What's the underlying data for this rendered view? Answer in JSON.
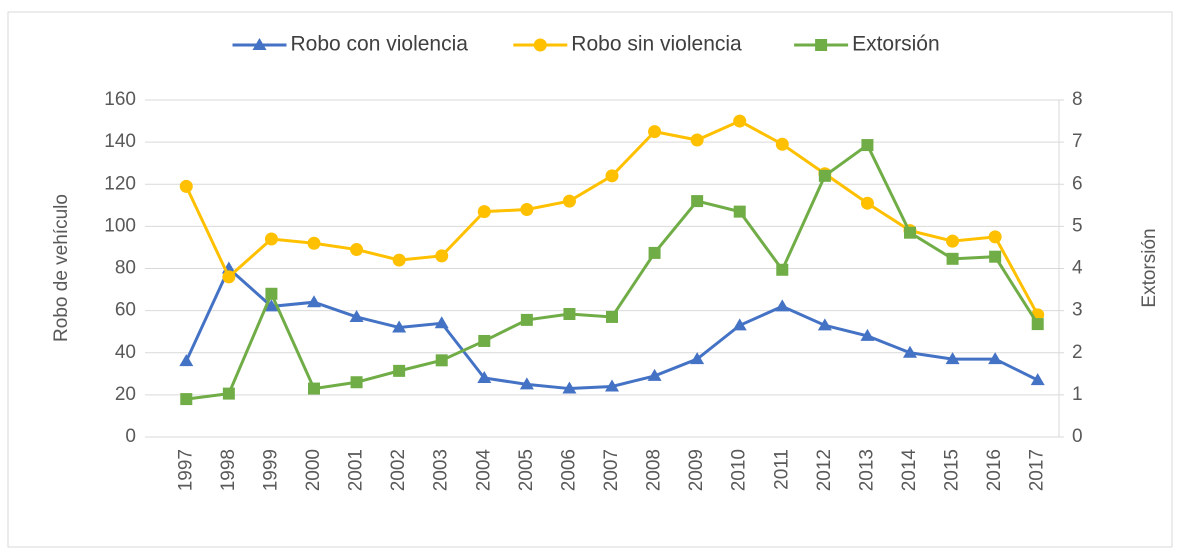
{
  "chart_data": {
    "type": "line",
    "categories": [
      "1997",
      "1998",
      "1999",
      "2000",
      "2001",
      "2002",
      "2003",
      "2004",
      "2005",
      "2006",
      "2007",
      "2008",
      "2009",
      "2010",
      "2011",
      "2012",
      "2013",
      "2014",
      "2015",
      "2016",
      "2017"
    ],
    "y_label": "Robo de vehículo",
    "y2_label": "Extorsión",
    "ylim": [
      0,
      160
    ],
    "yticks": [
      0,
      20,
      40,
      60,
      80,
      100,
      120,
      140,
      160
    ],
    "y2lim": [
      0,
      8
    ],
    "y2ticks": [
      0,
      1,
      2,
      3,
      4,
      5,
      6,
      7,
      8
    ],
    "grid": true,
    "legend": "top",
    "series": [
      {
        "name": "Robo con violencia",
        "color": "#4472c4",
        "marker": "triangle",
        "values": [
          36,
          80,
          62,
          64,
          57,
          52,
          54,
          28,
          25,
          23,
          24,
          29,
          37,
          53,
          62,
          53,
          48,
          40,
          37,
          37,
          27
        ]
      },
      {
        "name": "Robo sin violencia",
        "color": "#ffc000",
        "marker": "circle",
        "values": [
          119,
          76,
          94,
          92,
          89,
          84,
          86,
          107,
          108,
          112,
          124,
          145,
          141,
          150,
          139,
          125,
          111,
          98,
          93,
          95,
          58
        ]
      },
      {
        "name": "Extorsión",
        "color": "#70ad47",
        "marker": "square",
        "axis": "y2",
        "values": [
          0.9,
          1.03,
          3.4,
          1.15,
          1.3,
          1.57,
          1.82,
          2.28,
          2.78,
          2.92,
          2.85,
          4.37,
          5.6,
          5.35,
          3.97,
          6.2,
          6.93,
          4.85,
          4.23,
          4.28,
          2.68
        ]
      }
    ]
  }
}
